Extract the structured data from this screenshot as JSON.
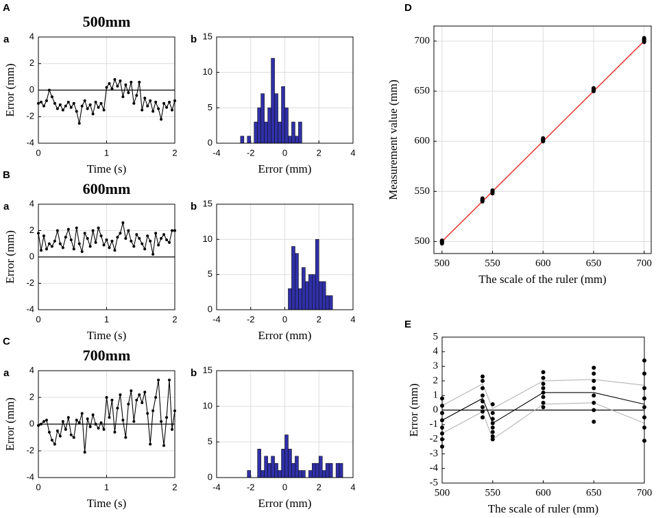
{
  "chart_data": [
    {
      "type": "line",
      "panel_label": "A",
      "title": "500mm",
      "subpanel_label": "a",
      "x_label": "Time (s)",
      "y_label": "Error (mm)",
      "xlim": [
        0,
        2
      ],
      "ylim": [
        -4,
        4
      ],
      "xticks": [
        0,
        1,
        2
      ],
      "yticks": [
        -4,
        -2,
        0,
        2,
        4
      ],
      "grid": true,
      "hline": 0,
      "series": [
        {
          "style": "line+markers",
          "color": "#000000",
          "x": [
            0,
            0.04,
            0.08,
            0.12,
            0.16,
            0.2,
            0.24,
            0.28,
            0.32,
            0.36,
            0.4,
            0.44,
            0.48,
            0.52,
            0.56,
            0.6,
            0.64,
            0.68,
            0.72,
            0.76,
            0.8,
            0.84,
            0.88,
            0.92,
            0.96,
            1,
            1.04,
            1.08,
            1.12,
            1.16,
            1.2,
            1.24,
            1.28,
            1.32,
            1.36,
            1.4,
            1.44,
            1.48,
            1.52,
            1.56,
            1.6,
            1.64,
            1.68,
            1.72,
            1.76,
            1.8,
            1.84,
            1.88,
            1.92,
            1.96,
            2
          ],
          "values": [
            -1,
            -0.9,
            -1.2,
            -0.8,
            0,
            -0.5,
            -1,
            -1.4,
            -1.1,
            -1.5,
            -1.2,
            -0.9,
            -1.3,
            -1.0,
            -1.6,
            -2.5,
            -1.2,
            -0.8,
            -1.4,
            -1.1,
            -1.8,
            -0.9,
            -1.3,
            -1.0,
            -1.5,
            0.2,
            0.5,
            0.1,
            0.8,
            0.3,
            0.7,
            -0.5,
            0.4,
            -0.2,
            0.6,
            -1.0,
            -0.4,
            0.6,
            -1.5,
            -0.6,
            -1.2,
            -0.8,
            -1.6,
            -0.9,
            -1.4,
            -2.2,
            -1.0,
            -1.3,
            -0.9,
            -1.5,
            -0.8
          ]
        }
      ]
    },
    {
      "type": "histogram",
      "subpanel_label": "b",
      "x_label": "Error (mm)",
      "xlim": [
        -4,
        4
      ],
      "ylim": [
        0,
        15
      ],
      "xticks": [
        -4,
        -2,
        0,
        2,
        4
      ],
      "yticks": [
        0,
        5,
        10,
        15
      ],
      "grid": true,
      "color": "#3030a8",
      "bins": [
        -3,
        -2.8,
        -2.6,
        -2.4,
        -2.2,
        -2,
        -1.8,
        -1.6,
        -1.4,
        -1.2,
        -1,
        -0.8,
        -0.6,
        -0.4,
        -0.2,
        0,
        0.2,
        0.4,
        0.6,
        0.8,
        1,
        1.2,
        1.4,
        1.6,
        1.8,
        2,
        2.2,
        2.4,
        2.6,
        2.8,
        3,
        3.2,
        3.4
      ],
      "values": [
        0,
        0,
        1,
        0,
        1,
        0,
        3,
        5,
        7,
        3,
        5,
        12,
        7,
        3,
        8,
        5,
        1,
        3,
        1,
        3,
        0,
        0,
        0,
        0,
        0,
        0,
        0,
        0,
        0,
        0,
        0,
        0
      ]
    },
    {
      "type": "line",
      "panel_label": "B",
      "title": "600mm",
      "subpanel_label": "a",
      "x_label": "Time (s)",
      "y_label": "Error (mm)",
      "xlim": [
        0,
        2
      ],
      "ylim": [
        -4,
        4
      ],
      "xticks": [
        0,
        1,
        2
      ],
      "yticks": [
        -4,
        -2,
        0,
        2,
        4
      ],
      "grid": true,
      "hline": 0,
      "series": [
        {
          "style": "line+markers",
          "color": "#000000",
          "x": [
            0,
            0.04,
            0.08,
            0.12,
            0.16,
            0.2,
            0.24,
            0.28,
            0.32,
            0.36,
            0.4,
            0.44,
            0.48,
            0.52,
            0.56,
            0.6,
            0.64,
            0.68,
            0.72,
            0.76,
            0.8,
            0.84,
            0.88,
            0.92,
            0.96,
            1,
            1.04,
            1.08,
            1.12,
            1.16,
            1.2,
            1.24,
            1.28,
            1.32,
            1.36,
            1.4,
            1.44,
            1.48,
            1.52,
            1.56,
            1.6,
            1.64,
            1.68,
            1.72,
            1.76,
            1.8,
            1.84,
            1.88,
            1.92,
            1.96,
            2
          ],
          "values": [
            1.8,
            0.5,
            1.6,
            0.6,
            1.0,
            0.8,
            1.2,
            2.0,
            1.0,
            0.7,
            1.5,
            2.1,
            1.3,
            0.6,
            2.2,
            1.0,
            0.4,
            1.8,
            1.4,
            0.8,
            2.0,
            1.1,
            2.2,
            1.6,
            0.9,
            1.3,
            0.7,
            1.2,
            0.5,
            1.5,
            1.8,
            2.6,
            1.4,
            2.0,
            1.2,
            0.8,
            1.7,
            1.4,
            1.0,
            0.6,
            1.6,
            1.2,
            0.2,
            1.8,
            0.9,
            1.4,
            1.7,
            1.3,
            1.1,
            2.0,
            2.0
          ]
        }
      ]
    },
    {
      "type": "histogram",
      "subpanel_label": "b",
      "x_label": "Error (mm)",
      "xlim": [
        -4,
        4
      ],
      "ylim": [
        0,
        15
      ],
      "xticks": [
        -4,
        -2,
        0,
        2,
        4
      ],
      "yticks": [
        0,
        5,
        10,
        15
      ],
      "grid": true,
      "color": "#3030a8",
      "bins": [
        -3,
        -2.8,
        -2.6,
        -2.4,
        -2.2,
        -2,
        -1.8,
        -1.6,
        -1.4,
        -1.2,
        -1,
        -0.8,
        -0.6,
        -0.4,
        -0.2,
        0,
        0.2,
        0.4,
        0.6,
        0.8,
        1,
        1.2,
        1.4,
        1.6,
        1.8,
        2,
        2.2,
        2.4,
        2.6,
        2.8,
        3,
        3.2,
        3.4
      ],
      "values": [
        0,
        0,
        0,
        0,
        0,
        0,
        0,
        0,
        0,
        0,
        0,
        0,
        0,
        0,
        0,
        0,
        3,
        9,
        8,
        3,
        6,
        4,
        5,
        5,
        10,
        4,
        4,
        2,
        2,
        0,
        0,
        0
      ]
    },
    {
      "type": "line",
      "panel_label": "C",
      "title": "700mm",
      "subpanel_label": "a",
      "x_label": "Time (s)",
      "y_label": "Error (mm)",
      "xlim": [
        0,
        2
      ],
      "ylim": [
        -4,
        4
      ],
      "xticks": [
        0,
        1,
        2
      ],
      "yticks": [
        -4,
        -2,
        0,
        2,
        4
      ],
      "grid": true,
      "hline": 0,
      "series": [
        {
          "style": "line+markers",
          "color": "#000000",
          "x": [
            0,
            0.04,
            0.08,
            0.12,
            0.16,
            0.2,
            0.24,
            0.28,
            0.32,
            0.36,
            0.4,
            0.44,
            0.48,
            0.52,
            0.56,
            0.6,
            0.64,
            0.68,
            0.72,
            0.76,
            0.8,
            0.84,
            0.88,
            0.92,
            0.96,
            1,
            1.04,
            1.08,
            1.12,
            1.16,
            1.2,
            1.24,
            1.28,
            1.32,
            1.36,
            1.4,
            1.44,
            1.48,
            1.52,
            1.56,
            1.6,
            1.64,
            1.68,
            1.72,
            1.76,
            1.8,
            1.84,
            1.88,
            1.92,
            1.96,
            2
          ],
          "values": [
            -0.1,
            0,
            0.2,
            0.3,
            -0.6,
            -1.2,
            -1.5,
            -0.5,
            -0.9,
            0.2,
            -0.4,
            0.5,
            -0.8,
            -1.0,
            0.3,
            0.1,
            0.8,
            -2.1,
            0.4,
            -0.2,
            0.7,
            0,
            -0.3,
            0.1,
            -0.4,
            2.0,
            0.5,
            1.8,
            -0.6,
            1.2,
            2.2,
            0.3,
            -1.0,
            1.5,
            2.5,
            0.2,
            1.8,
            2.2,
            1.6,
            2.4,
            0.8,
            -1.5,
            1.0,
            2.0,
            3.3,
            0.2,
            -1.6,
            0.5,
            3.3,
            -0.4,
            1.0
          ]
        }
      ]
    },
    {
      "type": "histogram",
      "subpanel_label": "b",
      "x_label": "Error (mm)",
      "xlim": [
        -4,
        4
      ],
      "ylim": [
        0,
        15
      ],
      "xticks": [
        -4,
        -2,
        0,
        2,
        4
      ],
      "yticks": [
        0,
        5,
        10,
        15
      ],
      "grid": true,
      "color": "#3030a8",
      "bins": [
        -3,
        -2.8,
        -2.6,
        -2.4,
        -2.2,
        -2,
        -1.8,
        -1.6,
        -1.4,
        -1.2,
        -1,
        -0.8,
        -0.6,
        -0.4,
        -0.2,
        0,
        0.2,
        0.4,
        0.6,
        0.8,
        1,
        1.2,
        1.4,
        1.6,
        1.8,
        2,
        2.2,
        2.4,
        2.6,
        2.8,
        3,
        3.2,
        3.4
      ],
      "values": [
        0,
        0,
        0,
        0,
        1,
        0,
        0,
        4,
        1,
        3,
        2,
        3,
        2,
        1,
        4,
        6,
        4,
        2,
        3,
        1,
        1,
        0,
        1,
        2,
        2,
        3,
        1,
        2,
        2,
        0,
        2,
        2
      ]
    },
    {
      "type": "scatter",
      "panel_label": "D",
      "x_label": "The scale of the ruler (mm)",
      "y_label": "Measurement value (mm)",
      "xlim": [
        492,
        707
      ],
      "ylim": [
        488,
        715
      ],
      "xticks": [
        500,
        550,
        600,
        650,
        700
      ],
      "yticks": [
        500,
        550,
        600,
        650,
        700
      ],
      "grid": true,
      "series": [
        {
          "style": "line",
          "color": "#e8352e",
          "x": [
            500,
            700
          ],
          "values": [
            500,
            700
          ]
        },
        {
          "style": "markers",
          "color": "#000000",
          "x": [
            500,
            500,
            500,
            500,
            500,
            500,
            540,
            540,
            540,
            540,
            540,
            540,
            550,
            550,
            550,
            550,
            550,
            550,
            600,
            600,
            600,
            600,
            600,
            600,
            650,
            650,
            650,
            650,
            650,
            650,
            700,
            700,
            700,
            700,
            700,
            700
          ],
          "values": [
            498,
            499,
            499.5,
            500,
            500.5,
            501,
            540,
            540.5,
            541,
            541.5,
            542,
            543,
            548,
            548.5,
            549,
            549.5,
            550,
            551,
            600,
            600.5,
            601,
            601.5,
            602,
            603,
            650,
            650.5,
            651,
            651.5,
            652,
            653,
            699,
            700,
            701,
            701.5,
            702,
            703
          ]
        }
      ]
    },
    {
      "type": "scatter",
      "panel_label": "E",
      "x_label": "The scale of ruler (mm)",
      "y_label": "Error (mm)",
      "xlim": [
        500,
        700
      ],
      "ylim": [
        -5,
        5
      ],
      "xticks": [
        500,
        550,
        600,
        650,
        700
      ],
      "yticks": [
        -5,
        -4,
        -3,
        -2,
        -1,
        0,
        1,
        2,
        3,
        4,
        5
      ],
      "grid": false,
      "hline": 0,
      "series": [
        {
          "style": "line",
          "color": "#b4b4b4",
          "x": [
            500,
            540,
            550,
            600,
            650,
            700
          ],
          "values": [
            0.3,
            1.8,
            0.1,
            2.0,
            2.1,
            1.7
          ]
        },
        {
          "style": "line",
          "color": "#b4b4b4",
          "x": [
            500,
            540,
            550,
            600,
            650,
            700
          ],
          "values": [
            -1.6,
            -0.1,
            -2.0,
            0.4,
            0.5,
            -0.9
          ]
        },
        {
          "style": "line",
          "color": "#000000",
          "x": [
            500,
            540,
            550,
            600,
            650,
            700
          ],
          "values": [
            -0.7,
            0.8,
            -0.9,
            1.2,
            1.2,
            0.4
          ]
        },
        {
          "style": "markers",
          "color": "#000000",
          "x": [
            500,
            500,
            500,
            500,
            500,
            500,
            500,
            500,
            540,
            540,
            540,
            540,
            540,
            540,
            540,
            540,
            550,
            550,
            550,
            550,
            550,
            550,
            550,
            550,
            600,
            600,
            600,
            600,
            600,
            600,
            600,
            600,
            650,
            650,
            650,
            650,
            650,
            650,
            650,
            650,
            700,
            700,
            700,
            700,
            700,
            700,
            700,
            700
          ],
          "values": [
            0.8,
            0.3,
            -0.2,
            -0.7,
            -1.2,
            -1.6,
            -2.0,
            -2.5,
            2.3,
            2.0,
            1.5,
            1.0,
            0.6,
            0.2,
            -0.1,
            -0.5,
            0.4,
            -0.2,
            -0.6,
            -0.9,
            -1.2,
            -1.5,
            -1.8,
            -2.0,
            2.6,
            2.2,
            1.8,
            1.5,
            1.2,
            0.9,
            0.5,
            0.2,
            2.9,
            2.5,
            2.0,
            1.5,
            1.0,
            0.5,
            0.0,
            -0.8,
            3.4,
            2.5,
            1.5,
            0.8,
            0.2,
            -0.5,
            -1.2,
            -2.1
          ]
        }
      ]
    }
  ]
}
